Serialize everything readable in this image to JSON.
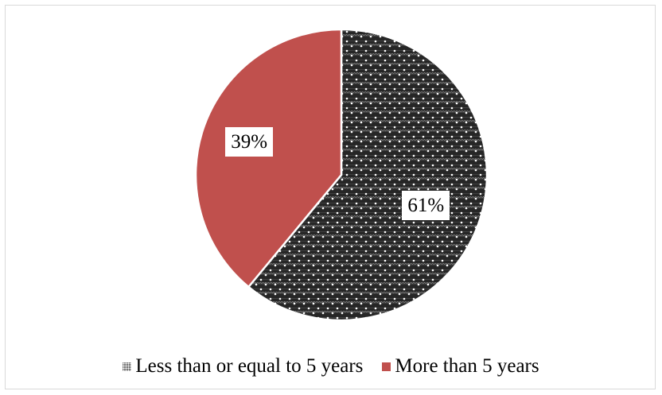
{
  "chart_data": {
    "type": "pie",
    "title": "",
    "slices": [
      {
        "label": "Less than or equal to 5 years",
        "value": 61,
        "display": "61%",
        "color": "#3f3f3f",
        "pattern": "dotted-checker"
      },
      {
        "label": "More than 5 years",
        "value": 39,
        "display": "39%",
        "color": "#c0504d",
        "pattern": "solid"
      }
    ],
    "start_angle_deg": 0,
    "direction": "clockwise",
    "legend_position": "bottom"
  }
}
